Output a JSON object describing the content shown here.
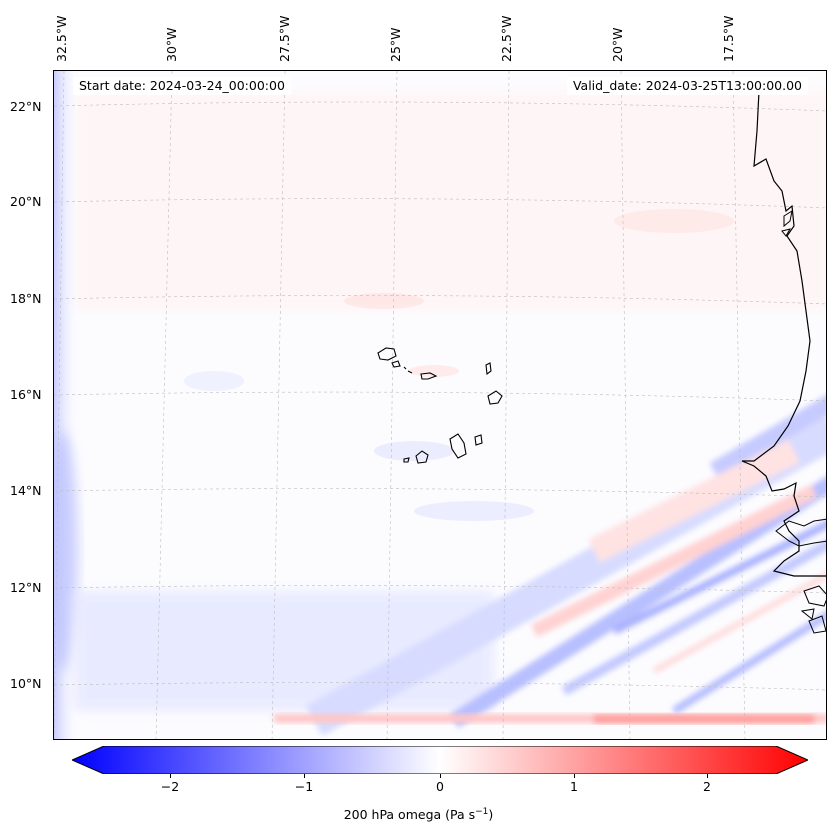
{
  "map": {
    "start_date": "Start date: 2024-03-24_00:00:00",
    "valid_date": "Valid_date: 2024-03-25T13:00:00.00",
    "longitude_labels": [
      "32.5°W",
      "30°W",
      "27.5°W",
      "25°W",
      "22.5°W",
      "20°W",
      "17.5°W"
    ],
    "latitude_labels": [
      "22°N",
      "20°N",
      "18°N",
      "16°N",
      "14°N",
      "12°N",
      "10°N"
    ]
  },
  "colorbar": {
    "ticks": [
      "−2",
      "−1",
      "0",
      "1",
      "2"
    ],
    "label_prefix": "200 hPa omega (Pa s",
    "label_exp": "−1",
    "label_suffix": ")",
    "colors": {
      "negative": "#0000ff",
      "zero": "#ffffff",
      "positive": "#ff0000"
    }
  }
}
